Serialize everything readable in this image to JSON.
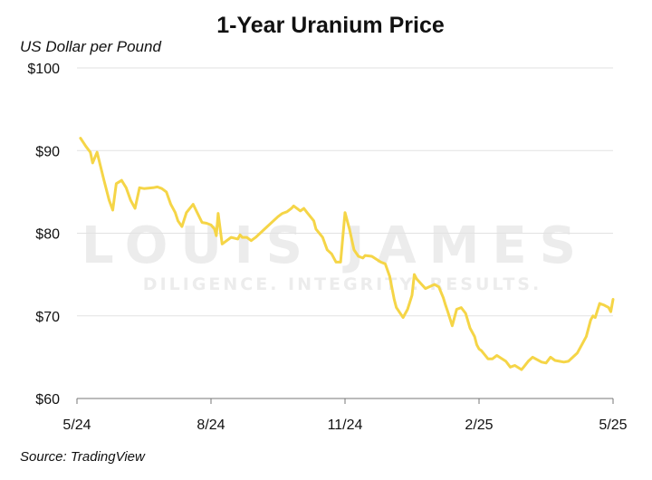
{
  "header": {
    "title": "1-Year Uranium Price"
  },
  "footer": {
    "source": "Source: TradingView"
  },
  "watermark": {
    "line1": "LOUIS JAMES",
    "line2": "DILIGENCE. INTEGRITY. RESULTS."
  },
  "colors": {
    "line": "#F5D547",
    "grid": "#e2e2e2",
    "axis": "#777777"
  },
  "chart_data": {
    "type": "line",
    "title": "1-Year Uranium Price",
    "xlabel": "",
    "ylabel": "US Dollar per Pound",
    "xlim": [
      0,
      12
    ],
    "ylim": [
      60,
      100
    ],
    "yticks": [
      {
        "value": 100,
        "label": "$100"
      },
      {
        "value": 90,
        "label": "$90"
      },
      {
        "value": 80,
        "label": "$80"
      },
      {
        "value": 70,
        "label": "$70"
      },
      {
        "value": 60,
        "label": "$60"
      }
    ],
    "xticks": [
      {
        "value": 0,
        "label": "5/24"
      },
      {
        "value": 3,
        "label": "8/24"
      },
      {
        "value": 6,
        "label": "11/24"
      },
      {
        "value": 9,
        "label": "2/25"
      },
      {
        "value": 12,
        "label": "5/25"
      }
    ],
    "grid": true,
    "series": [
      {
        "x": [
          0.08,
          0.2,
          0.3,
          0.35,
          0.45,
          0.6,
          0.72,
          0.8,
          0.88,
          1.0,
          1.1,
          1.2,
          1.3,
          1.4,
          1.5,
          1.7,
          1.8,
          1.9,
          2.0,
          2.1,
          2.2,
          2.26,
          2.35,
          2.45,
          2.6,
          2.8,
          2.9,
          3.0,
          3.08,
          3.12,
          3.16,
          3.25,
          3.45,
          3.6,
          3.65,
          3.7,
          3.8,
          3.9,
          4.0,
          4.2,
          4.5,
          4.6,
          4.7,
          4.8,
          4.85,
          5.0,
          5.08,
          5.15,
          5.3,
          5.35,
          5.5,
          5.6,
          5.7,
          5.8,
          5.9,
          6.0,
          6.1,
          6.2,
          6.3,
          6.4,
          6.45,
          6.6,
          6.8,
          6.9,
          7.0,
          7.1,
          7.15,
          7.3,
          7.4,
          7.5,
          7.55,
          7.6,
          7.8,
          8.0,
          8.1,
          8.2,
          8.25,
          8.3,
          8.4,
          8.5,
          8.6,
          8.7,
          8.8,
          8.9,
          8.95,
          9.0,
          9.05,
          9.2,
          9.3,
          9.4,
          9.6,
          9.7,
          9.8,
          9.95,
          10.0,
          10.1,
          10.2,
          10.4,
          10.5,
          10.6,
          10.7,
          10.8,
          10.9,
          11.0,
          11.1,
          11.2,
          11.3,
          11.4,
          11.5,
          11.55,
          11.6,
          11.7,
          11.8,
          11.9,
          11.95,
          12.0
        ],
        "y": [
          91.5,
          90.5,
          89.8,
          88.5,
          89.8,
          86.5,
          84.0,
          82.8,
          86.0,
          86.4,
          85.5,
          84.0,
          83.0,
          85.5,
          85.4,
          85.5,
          85.6,
          85.4,
          85.0,
          83.5,
          82.5,
          81.5,
          80.8,
          82.5,
          83.5,
          81.3,
          81.2,
          81.0,
          80.5,
          79.7,
          82.4,
          78.7,
          79.5,
          79.3,
          79.8,
          79.5,
          79.5,
          79.1,
          79.5,
          80.5,
          82.0,
          82.4,
          82.6,
          83.0,
          83.3,
          82.7,
          83.0,
          82.5,
          81.5,
          80.5,
          79.5,
          78.0,
          77.5,
          76.5,
          76.5,
          82.5,
          80.5,
          78.0,
          77.2,
          77.0,
          77.3,
          77.2,
          76.5,
          76.3,
          74.8,
          72.0,
          71.0,
          69.8,
          70.8,
          72.5,
          75.0,
          74.5,
          73.3,
          73.8,
          73.5,
          72.2,
          71.3,
          70.5,
          68.8,
          70.8,
          71.0,
          70.3,
          68.5,
          67.5,
          66.5,
          66.0,
          65.8,
          64.8,
          64.8,
          65.2,
          64.5,
          63.8,
          64.0,
          63.5,
          63.8,
          64.5,
          65.0,
          64.4,
          64.3,
          65.0,
          64.6,
          64.5,
          64.4,
          64.5,
          65.0,
          65.5,
          66.5,
          67.5,
          69.5,
          70.0,
          69.8,
          71.5,
          71.3,
          71.0,
          70.5,
          72.0
        ]
      }
    ]
  }
}
